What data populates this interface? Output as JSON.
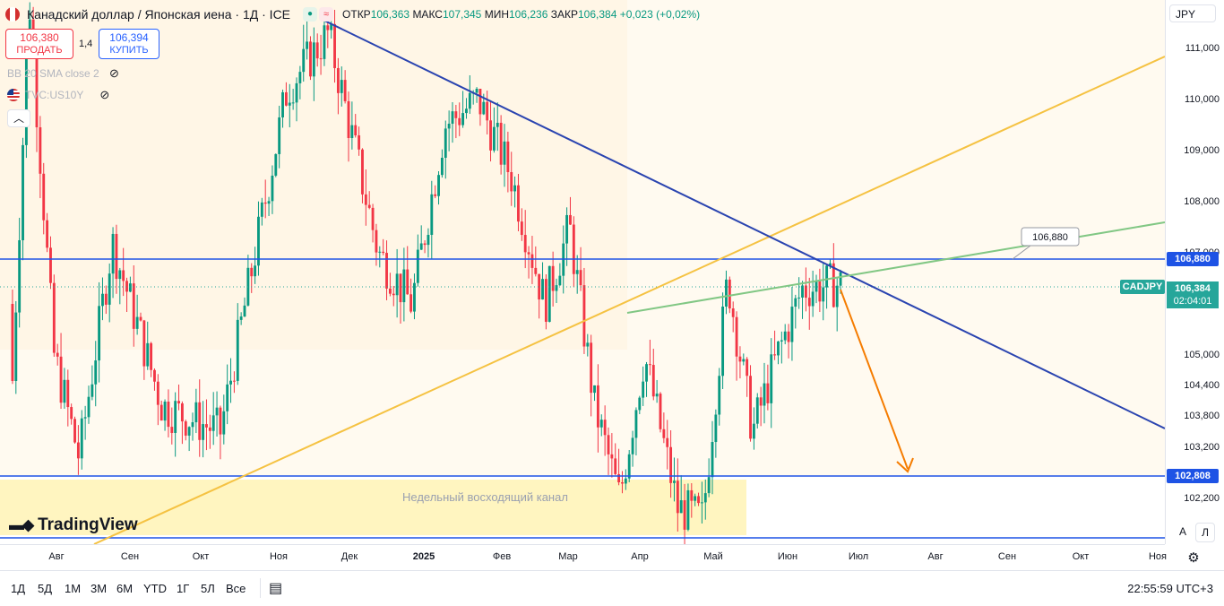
{
  "header": {
    "title": "Канадский доллар / Японская иена · 1Д · ICE",
    "open_label": "ОТКР",
    "open": "106,363",
    "high_label": "МАКС",
    "high": "107,345",
    "low_label": "МИН",
    "low": "106,236",
    "close_label": "ЗАКР",
    "close": "106,384",
    "change": "+0,023 (+0,02%)"
  },
  "trade": {
    "sell_price": "106,380",
    "sell_label": "ПРОДАТЬ",
    "spread": "1,4",
    "buy_price": "106,394",
    "buy_label": "КУПИТЬ"
  },
  "indicators": [
    {
      "label": "BB 20 SMA close 2"
    },
    {
      "label": "TVC:US10Y"
    }
  ],
  "currency": "JPY",
  "logo_text": "TradingView",
  "price_axis": {
    "ticks": [
      {
        "label": "111,000",
        "value": 111.0
      },
      {
        "label": "110,000",
        "value": 110.0
      },
      {
        "label": "109,000",
        "value": 109.0
      },
      {
        "label": "108,000",
        "value": 108.0
      },
      {
        "label": "107,000",
        "value": 107.0
      },
      {
        "label": "105,000",
        "value": 105.0
      },
      {
        "label": "104,400",
        "value": 104.4
      },
      {
        "label": "103,800",
        "value": 103.8
      },
      {
        "label": "103,200",
        "value": 103.2
      },
      {
        "label": "102,200",
        "value": 102.2
      }
    ],
    "current_symbol": "CADJPY",
    "current_price": "106,384",
    "countdown": "02:04:01",
    "level_upper": "106,880",
    "level_lower": "102,808",
    "line_label": "106,880",
    "colors": {
      "current": "#26a69a",
      "level": "#1e53e5"
    }
  },
  "time_axis": [
    {
      "label": "Авг",
      "bold": false
    },
    {
      "label": "Сен",
      "bold": false
    },
    {
      "label": "Окт",
      "bold": false
    },
    {
      "label": "Ноя",
      "bold": false
    },
    {
      "label": "Дек",
      "bold": false
    },
    {
      "label": "2025",
      "bold": true
    },
    {
      "label": "Фев",
      "bold": false
    },
    {
      "label": "Мар",
      "bold": false
    },
    {
      "label": "Апр",
      "bold": false
    },
    {
      "label": "Май",
      "bold": false
    },
    {
      "label": "Июн",
      "bold": false
    },
    {
      "label": "Июл",
      "bold": false
    },
    {
      "label": "Авг",
      "bold": false
    },
    {
      "label": "Сен",
      "bold": false
    },
    {
      "label": "Окт",
      "bold": false
    },
    {
      "label": "Ноя",
      "bold": false
    }
  ],
  "channel_label": "Недельный восходящий канал",
  "periods": [
    "1Д",
    "5Д",
    "1М",
    "3М",
    "6М",
    "YTD",
    "1Г",
    "5Л",
    "Все"
  ],
  "clock": "22:55:59 UTC+3",
  "scale_buttons": {
    "auto": "А",
    "log": "Л"
  },
  "colors": {
    "up": "#089981",
    "down": "#f23645",
    "channel_line": "#f5c242",
    "trend_line": "#2a44b0",
    "green_line": "#81c784",
    "arrow": "#f57c00",
    "zone_fill": "#fff5c0"
  }
}
